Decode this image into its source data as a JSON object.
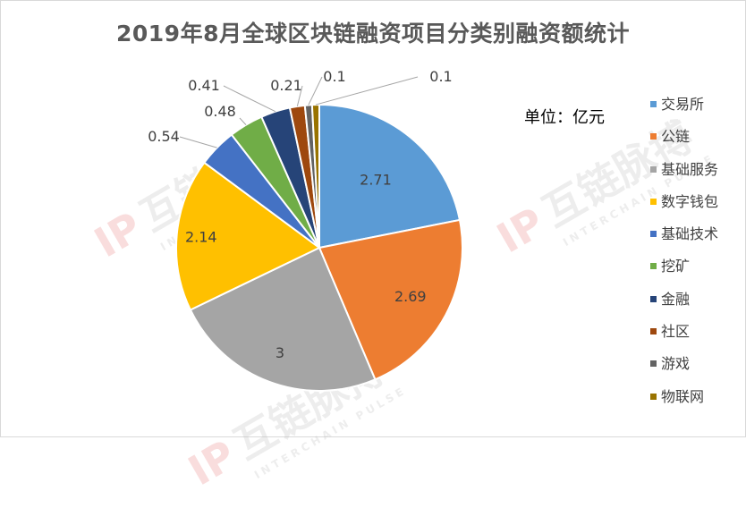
{
  "chart_data": {
    "type": "pie",
    "title": "2019年8月全球区块链融资项目分类别融资额统计",
    "unit_label": "单位：亿元",
    "categories": [
      "交易所",
      "公链",
      "基础服务",
      "数字钱包",
      "基础技术",
      "挖矿",
      "金融",
      "社区",
      "游戏",
      "物联网"
    ],
    "values": [
      2.71,
      2.69,
      3,
      2.14,
      0.54,
      0.48,
      0.41,
      0.21,
      0.1,
      0.1
    ],
    "value_labels": [
      "2.71",
      "2.69",
      "3",
      "2.14",
      "0.54",
      "0.48",
      "0.41",
      "0.21",
      "0.1",
      "0.1"
    ],
    "colors": [
      "#5B9BD5",
      "#ED7D31",
      "#A5A5A5",
      "#FFC000",
      "#4472C4",
      "#70AD47",
      "#264478",
      "#9E480E",
      "#636363",
      "#997300"
    ],
    "legend_position": "right"
  },
  "watermark": {
    "brand": "互链脉搏",
    "sub": "INTERCHAIN PULSE",
    "logo": "IP"
  }
}
